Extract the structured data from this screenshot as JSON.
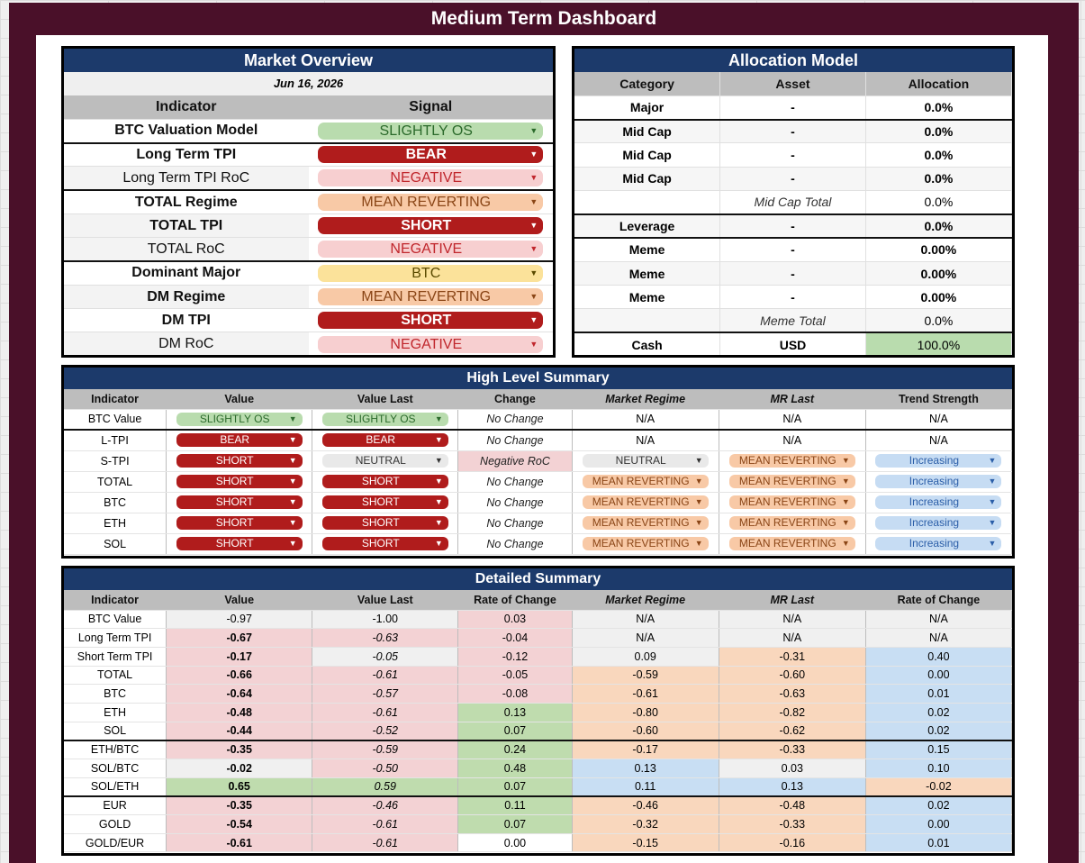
{
  "title": "Medium Term Dashboard",
  "market_overview": {
    "title": "Market Overview",
    "date": "Jun 16, 2026",
    "headers": [
      "Indicator",
      "Signal"
    ],
    "rows": [
      {
        "indicator": "BTC Valuation Model",
        "signal": "SLIGHTLY OS",
        "color": "green"
      },
      {
        "indicator": "Long Term TPI",
        "signal": "BEAR",
        "color": "red"
      },
      {
        "indicator": "Long Term TPI RoC",
        "signal": "NEGATIVE",
        "color": "pink"
      },
      {
        "indicator": "TOTAL Regime",
        "signal": "MEAN REVERTING",
        "color": "orange"
      },
      {
        "indicator": "TOTAL TPI",
        "signal": "SHORT",
        "color": "red"
      },
      {
        "indicator": "TOTAL RoC",
        "signal": "NEGATIVE",
        "color": "pink"
      },
      {
        "indicator": "Dominant Major",
        "signal": "BTC",
        "color": "yellow"
      },
      {
        "indicator": "DM Regime",
        "signal": "MEAN REVERTING",
        "color": "orange"
      },
      {
        "indicator": "DM TPI",
        "signal": "SHORT",
        "color": "red"
      },
      {
        "indicator": "DM RoC",
        "signal": "NEGATIVE",
        "color": "pink"
      }
    ]
  },
  "allocation_model": {
    "title": "Allocation Model",
    "headers": [
      "Category",
      "Asset",
      "Allocation"
    ],
    "rows": [
      {
        "category": "Major",
        "asset": "-",
        "allocation": "0.0%"
      },
      {
        "category": "Mid Cap",
        "asset": "-",
        "allocation": "0.0%"
      },
      {
        "category": "Mid Cap",
        "asset": "-",
        "allocation": "0.0%"
      },
      {
        "category": "Mid Cap",
        "asset": "-",
        "allocation": "0.0%"
      },
      {
        "category": "",
        "asset": "Mid Cap Total",
        "allocation": "0.0%"
      },
      {
        "category": "Leverage",
        "asset": "-",
        "allocation": "0.0%"
      },
      {
        "category": "Meme",
        "asset": "-",
        "allocation": "0.00%"
      },
      {
        "category": "Meme",
        "asset": "-",
        "allocation": "0.00%"
      },
      {
        "category": "Meme",
        "asset": "-",
        "allocation": "0.00%"
      },
      {
        "category": "",
        "asset": "Meme Total",
        "allocation": "0.0%"
      },
      {
        "category": "Cash",
        "asset": "USD",
        "allocation": "100.0%"
      }
    ]
  },
  "high_level_summary": {
    "title": "High Level Summary",
    "headers": [
      "Indicator",
      "Value",
      "Value Last",
      "Change",
      "Market Regime",
      "MR Last",
      "Trend Strength"
    ],
    "rows": [
      {
        "indicator": "BTC Value",
        "value": "SLIGHTLY OS",
        "value_last": "SLIGHTLY OS",
        "change": "No Change",
        "regime": "N/A",
        "mr_last": "N/A",
        "trend": "N/A"
      },
      {
        "indicator": "L-TPI",
        "value": "BEAR",
        "value_last": "BEAR",
        "change": "No Change",
        "regime": "N/A",
        "mr_last": "N/A",
        "trend": "N/A"
      },
      {
        "indicator": "S-TPI",
        "value": "SHORT",
        "value_last": "NEUTRAL",
        "change": "Negative RoC",
        "regime": "NEUTRAL",
        "mr_last": "MEAN REVERTING",
        "trend": "Increasing"
      },
      {
        "indicator": "TOTAL",
        "value": "SHORT",
        "value_last": "SHORT",
        "change": "No Change",
        "regime": "MEAN REVERTING",
        "mr_last": "MEAN REVERTING",
        "trend": "Increasing"
      },
      {
        "indicator": "BTC",
        "value": "SHORT",
        "value_last": "SHORT",
        "change": "No Change",
        "regime": "MEAN REVERTING",
        "mr_last": "MEAN REVERTING",
        "trend": "Increasing"
      },
      {
        "indicator": "ETH",
        "value": "SHORT",
        "value_last": "SHORT",
        "change": "No Change",
        "regime": "MEAN REVERTING",
        "mr_last": "MEAN REVERTING",
        "trend": "Increasing"
      },
      {
        "indicator": "SOL",
        "value": "SHORT",
        "value_last": "SHORT",
        "change": "No Change",
        "regime": "MEAN REVERTING",
        "mr_last": "MEAN REVERTING",
        "trend": "Increasing"
      }
    ]
  },
  "detailed_summary": {
    "title": "Detailed Summary",
    "headers": [
      "Indicator",
      "Value",
      "Value Last",
      "Rate of Change",
      "Market Regime",
      "MR Last",
      "Rate of Change"
    ],
    "rows": [
      {
        "indicator": "BTC Value",
        "value": "-0.97",
        "value_last": "-1.00",
        "roc": "0.03",
        "regime": "N/A",
        "mr_last": "N/A",
        "roc2": "N/A"
      },
      {
        "indicator": "Long Term TPI",
        "value": "-0.67",
        "value_last": "-0.63",
        "roc": "-0.04",
        "regime": "N/A",
        "mr_last": "N/A",
        "roc2": "N/A"
      },
      {
        "indicator": "Short Term TPI",
        "value": "-0.17",
        "value_last": "-0.05",
        "roc": "-0.12",
        "regime": "0.09",
        "mr_last": "-0.31",
        "roc2": "0.40"
      },
      {
        "indicator": "TOTAL",
        "value": "-0.66",
        "value_last": "-0.61",
        "roc": "-0.05",
        "regime": "-0.59",
        "mr_last": "-0.60",
        "roc2": "0.00"
      },
      {
        "indicator": "BTC",
        "value": "-0.64",
        "value_last": "-0.57",
        "roc": "-0.08",
        "regime": "-0.61",
        "mr_last": "-0.63",
        "roc2": "0.01"
      },
      {
        "indicator": "ETH",
        "value": "-0.48",
        "value_last": "-0.61",
        "roc": "0.13",
        "regime": "-0.80",
        "mr_last": "-0.82",
        "roc2": "0.02"
      },
      {
        "indicator": "SOL",
        "value": "-0.44",
        "value_last": "-0.52",
        "roc": "0.07",
        "regime": "-0.60",
        "mr_last": "-0.62",
        "roc2": "0.02"
      },
      {
        "indicator": "ETH/BTC",
        "value": "-0.35",
        "value_last": "-0.59",
        "roc": "0.24",
        "regime": "-0.17",
        "mr_last": "-0.33",
        "roc2": "0.15"
      },
      {
        "indicator": "SOL/BTC",
        "value": "-0.02",
        "value_last": "-0.50",
        "roc": "0.48",
        "regime": "0.13",
        "mr_last": "0.03",
        "roc2": "0.10"
      },
      {
        "indicator": "SOL/ETH",
        "value": "0.65",
        "value_last": "0.59",
        "roc": "0.07",
        "regime": "0.11",
        "mr_last": "0.13",
        "roc2": "-0.02"
      },
      {
        "indicator": "EUR",
        "value": "-0.35",
        "value_last": "-0.46",
        "roc": "0.11",
        "regime": "-0.46",
        "mr_last": "-0.48",
        "roc2": "0.02"
      },
      {
        "indicator": "GOLD",
        "value": "-0.54",
        "value_last": "-0.61",
        "roc": "0.07",
        "regime": "-0.32",
        "mr_last": "-0.33",
        "roc2": "0.00"
      },
      {
        "indicator": "GOLD/EUR",
        "value": "-0.61",
        "value_last": "-0.61",
        "roc": "0.00",
        "regime": "-0.15",
        "mr_last": "-0.16",
        "roc2": "0.01"
      }
    ]
  },
  "colors": {
    "frame": "#4a1029",
    "header_blue": "#1c3a6b",
    "chip_red": "#b01c1c",
    "chip_green": "#b9dcae",
    "chip_pink": "#f7cfd0",
    "chip_orange": "#f8c9a6",
    "chip_yellow": "#fbe29a",
    "chip_blue": "#c6dcf3"
  }
}
